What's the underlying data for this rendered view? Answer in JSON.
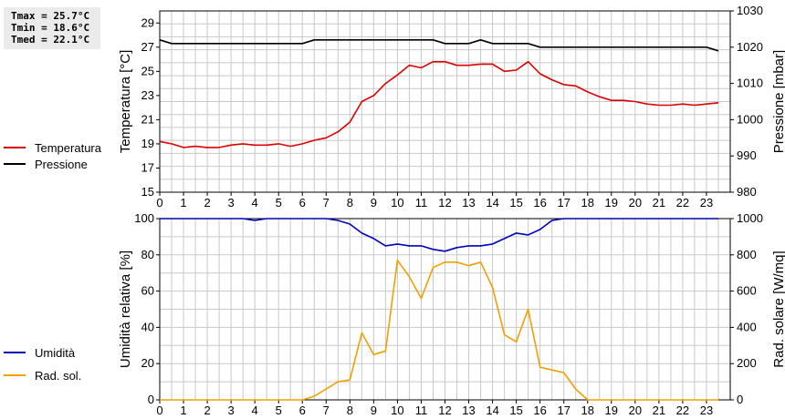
{
  "stats": {
    "tmax": "Tmax = 25.7°C",
    "tmin": "Tmin = 18.6°C",
    "tmed": "Tmed = 22.1°C"
  },
  "colors": {
    "temperatura": "#dd0000",
    "pressione": "#000000",
    "umidita": "#0000bb",
    "radsol": "#f0a000",
    "grid": "#c8c8c8"
  },
  "legend_top": [
    "Temperatura",
    "Pressione"
  ],
  "legend_bottom": [
    "Umidità",
    "Rad. sol."
  ],
  "chart_data": [
    {
      "type": "line",
      "ylabel": "Temperatura [°C]",
      "y2label": "Pressione [mbar]",
      "xlim": [
        0,
        24
      ],
      "xticks": [
        "0",
        "1",
        "2",
        "3",
        "4",
        "5",
        "6",
        "7",
        "8",
        "9",
        "10",
        "11",
        "12",
        "13",
        "14",
        "15",
        "16",
        "17",
        "18",
        "19",
        "20",
        "21",
        "22",
        "23"
      ],
      "ylim": [
        15,
        30
      ],
      "yticks": [
        "15",
        "17",
        "19",
        "21",
        "23",
        "25",
        "27",
        "29"
      ],
      "y2lim": [
        980,
        1030
      ],
      "y2ticks": [
        "980",
        "990",
        "1000",
        "1010",
        "1020",
        "1030"
      ],
      "grid": true,
      "legend": "left",
      "x": [
        0,
        0.5,
        1,
        1.5,
        2,
        2.5,
        3,
        3.5,
        4,
        4.5,
        5,
        5.5,
        6,
        6.5,
        7,
        7.5,
        8,
        8.5,
        9,
        9.5,
        10,
        10.5,
        11,
        11.5,
        12,
        12.5,
        13,
        13.5,
        14,
        14.5,
        15,
        15.5,
        16,
        16.5,
        17,
        17.5,
        18,
        18.5,
        19,
        19.5,
        20,
        20.5,
        21,
        21.5,
        22,
        22.5,
        23,
        23.5
      ],
      "series": [
        {
          "name": "Temperatura",
          "axis": "left",
          "values": [
            19.2,
            19.0,
            18.7,
            18.8,
            18.7,
            18.7,
            18.9,
            19.0,
            18.9,
            18.9,
            19.0,
            18.8,
            19.0,
            19.3,
            19.5,
            20.0,
            20.8,
            22.5,
            23.0,
            24.0,
            24.7,
            25.5,
            25.3,
            25.8,
            25.8,
            25.5,
            25.5,
            25.6,
            25.6,
            25.0,
            25.1,
            25.8,
            24.8,
            24.3,
            23.9,
            23.8,
            23.3,
            22.9,
            22.6,
            22.6,
            22.5,
            22.3,
            22.2,
            22.2,
            22.3,
            22.2,
            22.3,
            22.4
          ]
        },
        {
          "name": "Pressione",
          "axis": "right",
          "values": [
            1022,
            1021,
            1021,
            1021,
            1021,
            1021,
            1021,
            1021,
            1021,
            1021,
            1021,
            1021,
            1021,
            1022,
            1022,
            1022,
            1022,
            1022,
            1022,
            1022,
            1022,
            1022,
            1022,
            1022,
            1021,
            1021,
            1021,
            1022,
            1021,
            1021,
            1021,
            1021,
            1020,
            1020,
            1020,
            1020,
            1020,
            1020,
            1020,
            1020,
            1020,
            1020,
            1020,
            1020,
            1020,
            1020,
            1020,
            1019
          ]
        }
      ]
    },
    {
      "type": "line",
      "ylabel": "Umidità relativa [%]",
      "y2label": "Rad. solare [W/mq]",
      "xlim": [
        0,
        24
      ],
      "xticks": [
        "0",
        "1",
        "2",
        "3",
        "4",
        "5",
        "6",
        "7",
        "8",
        "9",
        "10",
        "11",
        "12",
        "13",
        "14",
        "15",
        "16",
        "17",
        "18",
        "19",
        "20",
        "21",
        "22",
        "23"
      ],
      "ylim": [
        0,
        100
      ],
      "yticks": [
        "0",
        "20",
        "40",
        "60",
        "80",
        "100"
      ],
      "y2lim": [
        0,
        1000
      ],
      "y2ticks": [
        "0",
        "200",
        "400",
        "600",
        "800",
        "1000"
      ],
      "grid": true,
      "legend": "left",
      "x": [
        0,
        0.5,
        1,
        1.5,
        2,
        2.5,
        3,
        3.5,
        4,
        4.5,
        5,
        5.5,
        6,
        6.5,
        7,
        7.5,
        8,
        8.5,
        9,
        9.5,
        10,
        10.5,
        11,
        11.5,
        12,
        12.5,
        13,
        13.5,
        14,
        14.5,
        15,
        15.5,
        16,
        16.5,
        17,
        17.5,
        18,
        18.5,
        19,
        19.5,
        20,
        20.5,
        21,
        21.5,
        22,
        22.5,
        23,
        23.5
      ],
      "series": [
        {
          "name": "Umidità",
          "axis": "left",
          "values": [
            100,
            100,
            100,
            100,
            100,
            100,
            100,
            100,
            99,
            100,
            100,
            100,
            100,
            100,
            100,
            99,
            97,
            92,
            89,
            85,
            86,
            85,
            85,
            83,
            82,
            84,
            85,
            85,
            86,
            89,
            92,
            91,
            94,
            99,
            100,
            100,
            100,
            100,
            100,
            100,
            100,
            100,
            100,
            100,
            100,
            100,
            100,
            100
          ]
        },
        {
          "name": "Rad. sol.",
          "axis": "right",
          "values": [
            0,
            0,
            0,
            0,
            0,
            0,
            0,
            0,
            0,
            0,
            0,
            0,
            0,
            20,
            60,
            100,
            110,
            370,
            250,
            270,
            770,
            680,
            560,
            730,
            760,
            760,
            740,
            760,
            620,
            360,
            320,
            500,
            180,
            165,
            150,
            60,
            0,
            0,
            0,
            0,
            0,
            0,
            0,
            0,
            0,
            0,
            0,
            0
          ]
        }
      ]
    }
  ]
}
